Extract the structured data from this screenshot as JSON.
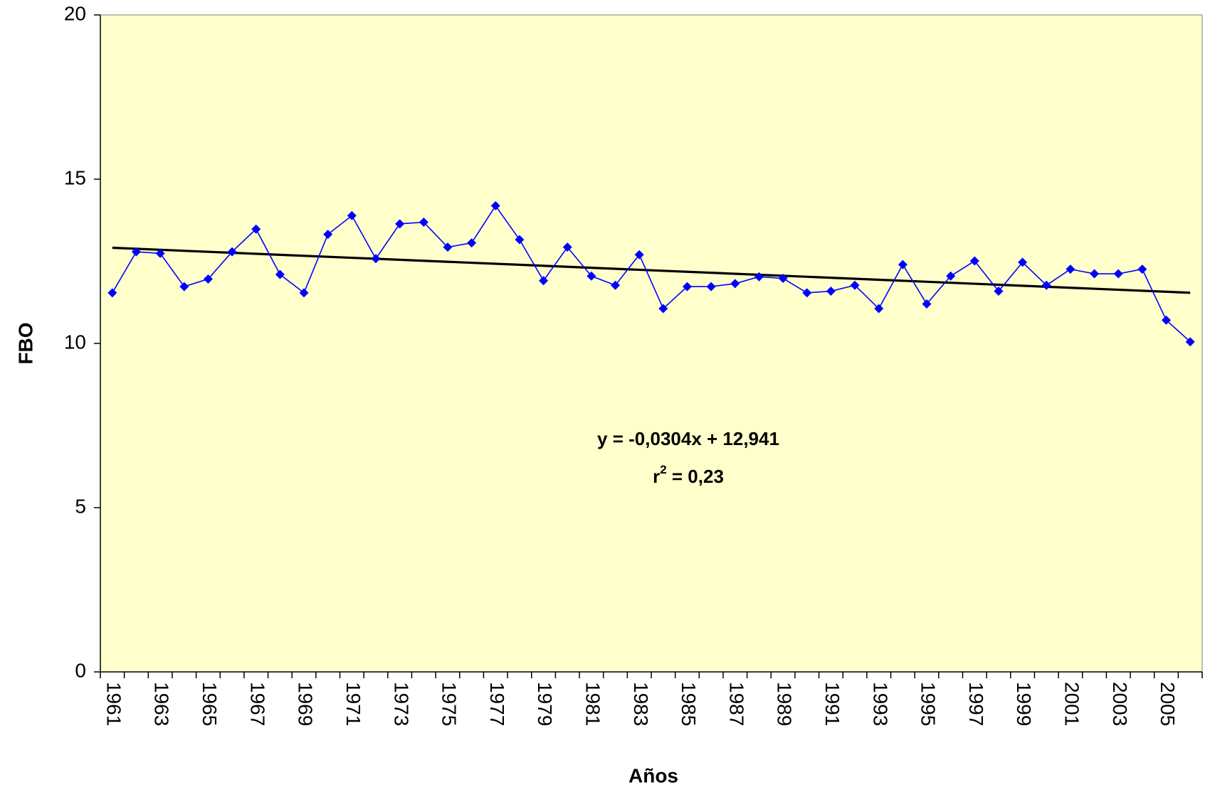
{
  "chart_data": {
    "type": "line",
    "x_label": "Años",
    "y_label": "FBO",
    "categories": [
      "1961",
      null,
      "1963",
      null,
      "1965",
      null,
      "1967",
      null,
      "1969",
      null,
      "1971",
      null,
      "1973",
      null,
      "1975",
      null,
      "1977",
      null,
      "1979",
      null,
      "1981",
      null,
      "1983",
      null,
      "1985",
      null,
      "1987",
      null,
      "1989",
      null,
      "1991",
      null,
      "1993",
      null,
      "1995",
      null,
      "1997",
      null,
      "1999",
      null,
      "2001",
      null,
      "2003",
      null,
      "2005",
      null
    ],
    "series": [
      {
        "color": "#0000ff",
        "marker": "diamond",
        "values": [
          11.54,
          12.79,
          12.74,
          11.73,
          11.96,
          12.79,
          13.48,
          12.1,
          11.54,
          13.32,
          13.89,
          12.58,
          13.64,
          13.69,
          12.93,
          13.06,
          14.19,
          13.16,
          11.91,
          12.93,
          12.05,
          11.77,
          12.7,
          11.06,
          11.73,
          11.73,
          11.82,
          12.03,
          11.98,
          11.54,
          11.59,
          11.77,
          11.06,
          12.4,
          11.2,
          12.05,
          12.51,
          11.59,
          12.47,
          11.77,
          12.26,
          12.12,
          12.12,
          12.26,
          10.71,
          10.05
        ]
      }
    ],
    "trendline": {
      "color": "#000000",
      "slope": -0.0304,
      "intercept": 12.941
    },
    "equation": "y = -0,0304x + 12,941",
    "r_squared": {
      "symbol": "r",
      "exponent": "2",
      "text": " = 0,23"
    },
    "annotation_color": "#800000",
    "ylim": [
      0,
      20
    ],
    "yticks": [
      0,
      5,
      10,
      15,
      20
    ],
    "grid": false,
    "plot_background": "#ffffcc"
  }
}
